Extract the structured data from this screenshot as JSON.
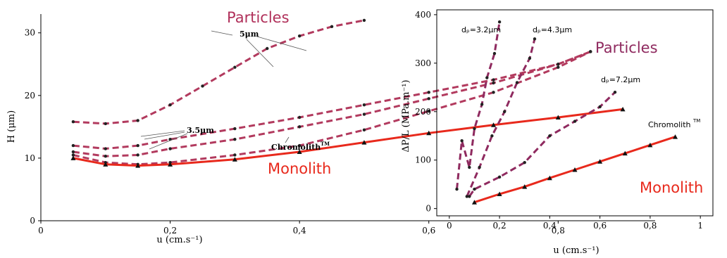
{
  "colors": {
    "particles_line": "#b23a5e",
    "particles_text": "#b0305a",
    "monolith_line": "#e8291c",
    "monolith_text": "#e8291c",
    "right_particles_line": "#8f2a5f",
    "right_particles_text": "#8f2a5f"
  },
  "chart_data": [
    {
      "type": "line",
      "xlabel": "u (cm.s⁻¹)",
      "ylabel": "H (μm)",
      "xlim": [
        0,
        0.95
      ],
      "ylim": [
        0,
        33
      ],
      "xticks": [
        "0",
        "0,2",
        "0,4",
        "0,6",
        "0,8"
      ],
      "xtick_values": [
        0,
        0.2,
        0.4,
        0.6,
        0.8
      ],
      "yticks": [
        "0",
        "10",
        "20",
        "30"
      ],
      "ytick_values": [
        0,
        10,
        20,
        30
      ],
      "labels": {
        "particles": "Particles",
        "monolith": "Monolith",
        "annot_5um": "5μm",
        "annot_35um": "3.5μm",
        "chromolith": "Chromolith",
        "chromolith_sup": "TM"
      },
      "series": [
        {
          "style": "particles",
          "x": [
            0.05,
            0.1,
            0.15,
            0.2,
            0.25,
            0.3,
            0.35,
            0.4,
            0.45,
            0.5
          ],
          "y": [
            15.8,
            15.5,
            16,
            18.5,
            21.5,
            24.5,
            27.5,
            29.5,
            31,
            32
          ]
        },
        {
          "style": "particles",
          "x": [
            0.05,
            0.1,
            0.15,
            0.2,
            0.3,
            0.4,
            0.5,
            0.6,
            0.7,
            0.8,
            0.85
          ],
          "y": [
            12,
            11.5,
            12,
            13,
            14.7,
            16.5,
            18.5,
            20.5,
            22.5,
            25,
            27
          ]
        },
        {
          "style": "particles",
          "x": [
            0.05,
            0.1,
            0.15,
            0.2,
            0.3,
            0.4,
            0.5,
            0.6,
            0.7,
            0.8,
            0.85
          ],
          "y": [
            11,
            10.3,
            10.5,
            11.5,
            13,
            15,
            17,
            19.5,
            22,
            25,
            27
          ]
        },
        {
          "style": "particles",
          "x": [
            0.05,
            0.1,
            0.15,
            0.2,
            0.3,
            0.4,
            0.5,
            0.6,
            0.7,
            0.8,
            0.85
          ],
          "y": [
            10.5,
            9.3,
            9,
            9.3,
            10.5,
            12,
            14.5,
            17.5,
            20.5,
            24.5,
            27
          ]
        },
        {
          "style": "monolith",
          "x": [
            0.05,
            0.1,
            0.15,
            0.2,
            0.3,
            0.4,
            0.5,
            0.6,
            0.7,
            0.8,
            0.9
          ],
          "y": [
            10,
            9,
            8.8,
            9,
            9.8,
            11,
            12.5,
            14,
            15.3,
            16.5,
            17.8
          ]
        }
      ]
    },
    {
      "type": "line",
      "xlabel": "u (cm.s⁻¹)",
      "ylabel": "ΔP/L (MPa.m⁻¹)",
      "xlim": [
        -0.05,
        1.05
      ],
      "ylim": [
        -15,
        410
      ],
      "xticks": [
        "0",
        "0,2",
        "0,4",
        "0,6",
        "0,8",
        "1"
      ],
      "xtick_values": [
        0,
        0.2,
        0.4,
        0.6,
        0.8,
        1.0
      ],
      "yticks": [
        "0",
        "100",
        "200",
        "300",
        "400"
      ],
      "ytick_values": [
        0,
        100,
        200,
        300,
        400
      ],
      "labels": {
        "particles": "Particles",
        "monolith": "Monolith",
        "dp1": "dₚ=3.2μm",
        "dp2": "dₚ=4.3μm",
        "dp3": "dₚ=7.2μm",
        "chromolith": "Chromolith",
        "chromolith_sup": "TM"
      },
      "series": [
        {
          "style": "particles",
          "x": [
            0.03,
            0.05,
            0.08,
            0.1,
            0.13,
            0.15,
            0.18,
            0.2
          ],
          "y": [
            40,
            140,
            85,
            165,
            215,
            270,
            320,
            385
          ]
        },
        {
          "style": "particles",
          "x": [
            0.07,
            0.12,
            0.17,
            0.22,
            0.27,
            0.32,
            0.34
          ],
          "y": [
            25,
            85,
            150,
            200,
            260,
            310,
            350
          ]
        },
        {
          "style": "particles",
          "x": [
            0.08,
            0.1,
            0.2,
            0.3,
            0.4,
            0.5,
            0.6,
            0.66
          ],
          "y": [
            25,
            40,
            65,
            95,
            150,
            180,
            210,
            240
          ]
        },
        {
          "style": "monolith",
          "x": [
            0.1,
            0.2,
            0.3,
            0.4,
            0.5,
            0.6,
            0.7,
            0.8,
            0.9
          ],
          "y": [
            13,
            30,
            45,
            63,
            80,
            97,
            114,
            131,
            148
          ]
        }
      ]
    }
  ]
}
